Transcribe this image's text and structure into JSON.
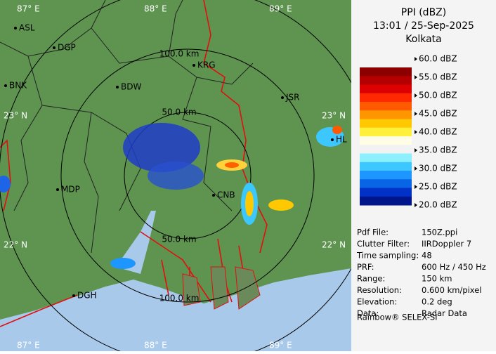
{
  "header": {
    "title": "PPI (dBZ)",
    "time": "13:01 / 25-Sep-2025",
    "station": "Kolkata"
  },
  "legend": {
    "labels": [
      "60.0 dBZ",
      "55.0 dBZ",
      "50.0 dBZ",
      "45.0 dBZ",
      "40.0 dBZ",
      "35.0 dBZ",
      "30.0 dBZ",
      "25.0 dBZ",
      "20.0 dBZ"
    ],
    "colors": [
      "#8c0000",
      "#b40000",
      "#dc0000",
      "#ff2800",
      "#ff5a00",
      "#ff9600",
      "#ffc800",
      "#fff03c",
      "#fffde6",
      "#f2f2f2",
      "#8cf0ff",
      "#3cc8ff",
      "#1e96ff",
      "#0a64e6",
      "#0032c8",
      "#00148c"
    ]
  },
  "info": {
    "rows": [
      [
        "Pdf File:",
        "150Z.ppi"
      ],
      [
        "Clutter Filter:",
        "IIRDoppler 7"
      ],
      [
        "Time sampling:",
        "48"
      ],
      [
        "PRF:",
        "600 Hz / 450 Hz"
      ],
      [
        "Range:",
        "150 km"
      ],
      [
        "Resolution:",
        "0.600 km/pixel"
      ],
      [
        "Elevation:",
        "0.2 deg"
      ],
      [
        "Data:",
        "Radar Data"
      ]
    ],
    "footer": "Rainbow® SELEX-SI"
  },
  "map": {
    "grid_labels": [
      "87° E",
      "88° E",
      "89° E",
      "23° N",
      "23° N",
      "22° N",
      "22° N",
      "87° E",
      "88° E",
      "89° E"
    ],
    "range_labels": [
      "100.0 km",
      "50.0 km",
      "50.0 km",
      "100.0 km"
    ],
    "places": [
      "ASL",
      "DGP",
      "BNK",
      "BDW",
      "KRG",
      "JSR",
      "MDP",
      "CNB",
      "DGH",
      "HL"
    ]
  }
}
